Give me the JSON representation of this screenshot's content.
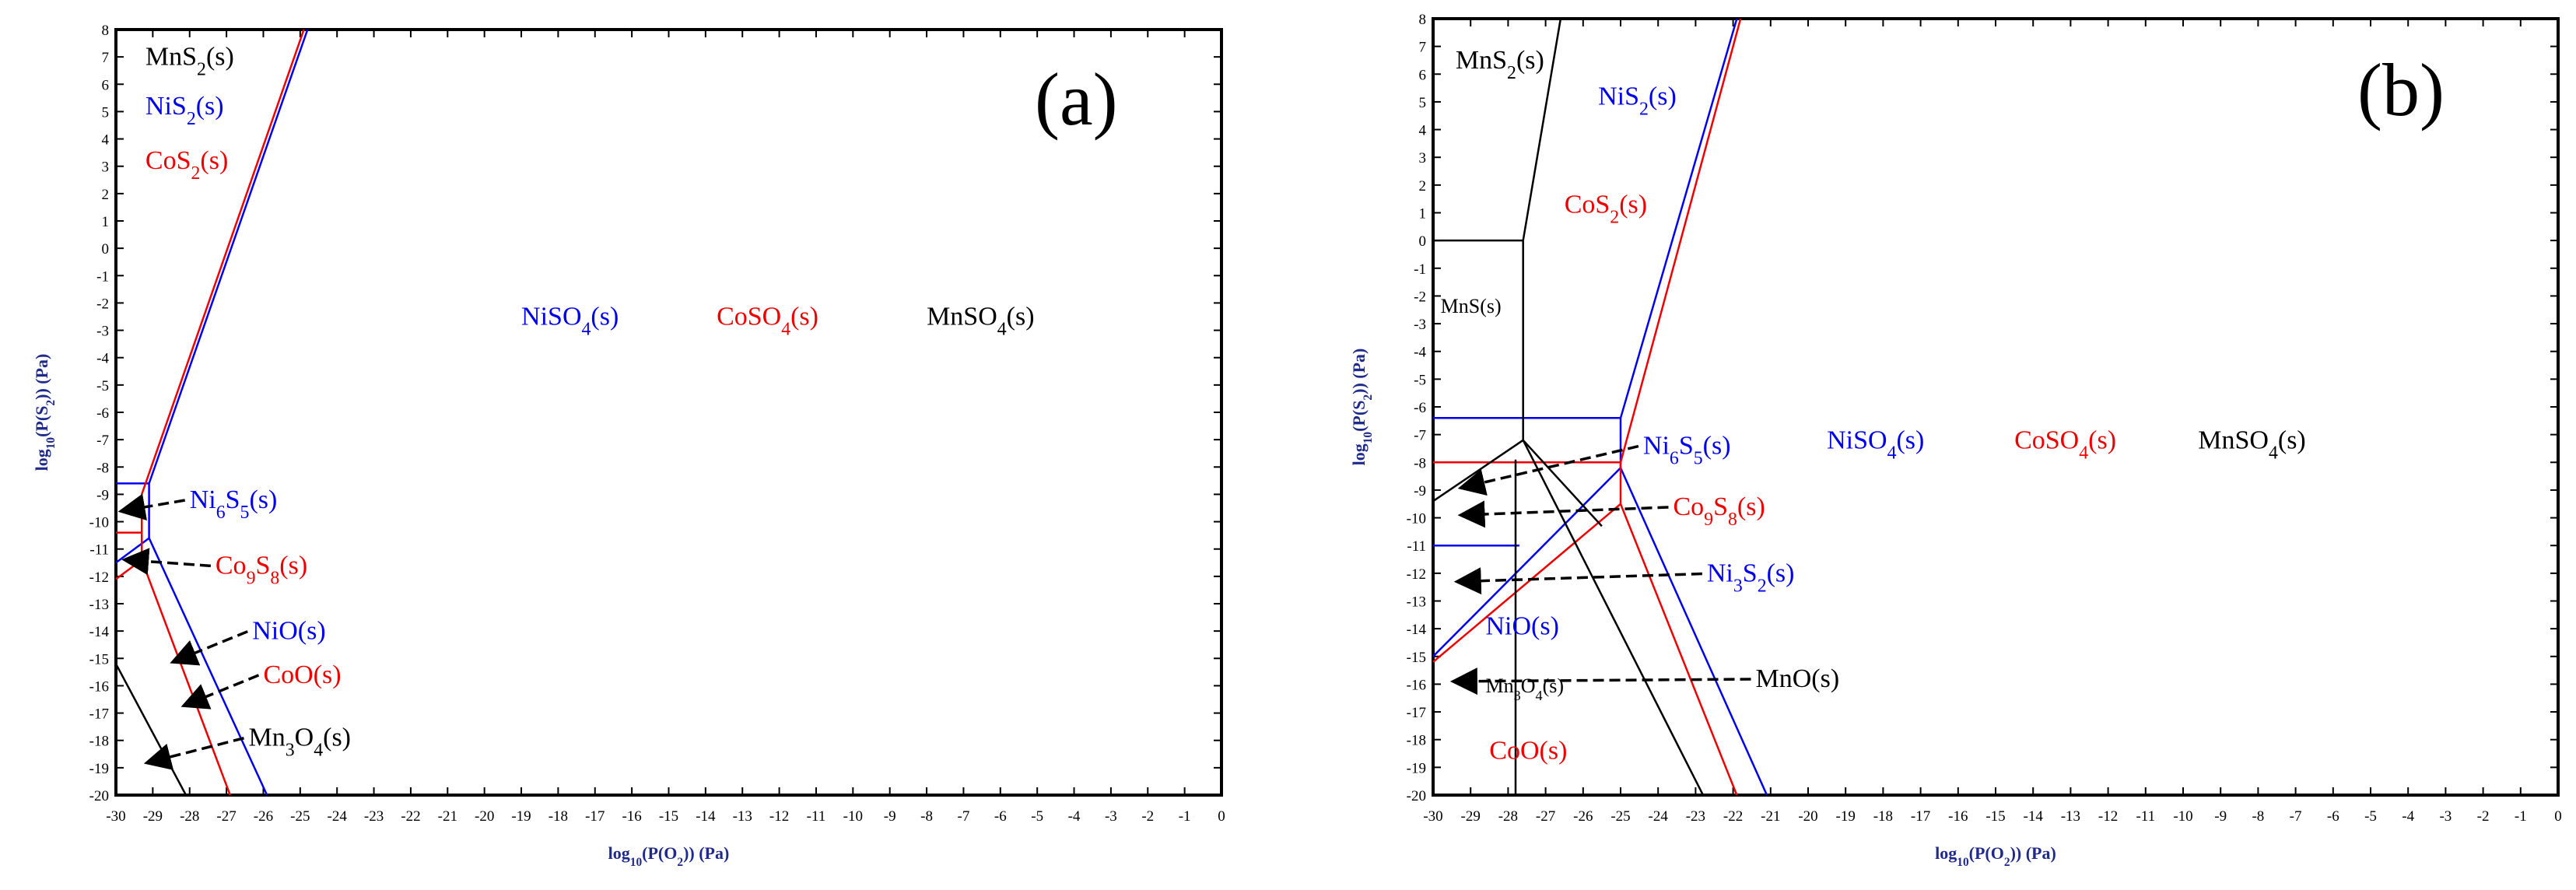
{
  "colors": {
    "Ni": "#0000ee",
    "Co": "#ee0000",
    "Mn": "#000000",
    "axis_label": "#1f2a8a"
  },
  "chart_data": [
    {
      "type": "line",
      "panel": "(a)",
      "xlabel": "log10(P(O2)) (Pa)",
      "ylabel": "log10(P(S2)) (Pa)",
      "xlim": [
        -30,
        0
      ],
      "ylim": [
        -20,
        8
      ],
      "x_ticks": [
        "-30",
        "-29",
        "-28",
        "-27",
        "-26",
        "-25",
        "-24",
        "-23",
        "-22",
        "-21",
        "-20",
        "-19",
        "-18",
        "-17",
        "-16",
        "-15",
        "-14",
        "-13",
        "-12",
        "-11",
        "-10",
        "-9",
        "-8",
        "-7",
        "-6",
        "-5",
        "-4",
        "-3",
        "-2",
        "-1",
        "0"
      ],
      "y_ticks": [
        "-20",
        "-19",
        "-18",
        "-17",
        "-16",
        "-15",
        "-14",
        "-13",
        "-12",
        "-11",
        "-10",
        "-9",
        "-8",
        "-7",
        "-6",
        "-5",
        "-4",
        "-3",
        "-2",
        "-1",
        "0",
        "1",
        "2",
        "3",
        "4",
        "5",
        "6",
        "7",
        "8"
      ],
      "series": [
        {
          "name": "Ni boundaries",
          "element": "Ni",
          "lines": [
            [
              [
                -30,
                -8.6
              ],
              [
                -29.1,
                -8.6
              ]
            ],
            [
              [
                -29.1,
                -8.6
              ],
              [
                -24.8,
                8
              ]
            ],
            [
              [
                -29.1,
                -8.6
              ],
              [
                -29.1,
                -10.6
              ]
            ],
            [
              [
                -29.1,
                -10.6
              ],
              [
                -30,
                -11.5
              ]
            ],
            [
              [
                -29.1,
                -10.6
              ],
              [
                -25.9,
                -20
              ]
            ]
          ]
        },
        {
          "name": "Co boundaries",
          "element": "Co",
          "lines": [
            [
              [
                -30,
                -10.4
              ],
              [
                -29.3,
                -10.4
              ]
            ],
            [
              [
                -29.3,
                -9
              ],
              [
                -24.9,
                8
              ]
            ],
            [
              [
                -29.3,
                -9
              ],
              [
                -29.3,
                -11.4
              ]
            ],
            [
              [
                -29.3,
                -11.4
              ],
              [
                -30,
                -12.1
              ]
            ],
            [
              [
                -29.3,
                -11.4
              ],
              [
                -26.9,
                -20
              ]
            ]
          ]
        },
        {
          "name": "Mn boundaries",
          "element": "Mn",
          "lines": [
            [
              [
                -30,
                -15.2
              ],
              [
                -28.1,
                -20
              ]
            ]
          ]
        }
      ],
      "annotations": [
        {
          "label": "MnS2(s)",
          "element": "Mn",
          "at": [
            -29.2,
            6.7
          ]
        },
        {
          "label": "NiS2(s)",
          "element": "Ni",
          "at": [
            -29.2,
            4.9
          ]
        },
        {
          "label": "CoS2(s)",
          "element": "Co",
          "at": [
            -29.2,
            2.9
          ]
        },
        {
          "label": "NiSO4(s)",
          "element": "Ni",
          "at": [
            -19,
            -2.8
          ]
        },
        {
          "label": "CoSO4(s)",
          "element": "Co",
          "at": [
            -13.7,
            -2.8
          ]
        },
        {
          "label": "MnSO4(s)",
          "element": "Mn",
          "at": [
            -8,
            -2.8
          ]
        },
        {
          "label": "Ni6S5(s)",
          "element": "Ni",
          "at": [
            -28,
            -9.5
          ],
          "arrow_to": [
            -29.8,
            -9.6
          ]
        },
        {
          "label": "Co9S8(s)",
          "element": "Co",
          "at": [
            -27.3,
            -11.9
          ],
          "arrow_to": [
            -29.7,
            -11.4
          ]
        },
        {
          "label": "NiO(s)",
          "element": "Ni",
          "at": [
            -26.3,
            -14.3
          ],
          "arrow_to": [
            -28.4,
            -15.1
          ]
        },
        {
          "label": "CoO(s)",
          "element": "Co",
          "at": [
            -26,
            -15.9
          ],
          "arrow_to": [
            -28.1,
            -16.7
          ]
        },
        {
          "label": "Mn3O4(s)",
          "element": "Mn",
          "at": [
            -26.4,
            -18.2
          ],
          "arrow_to": [
            -29.1,
            -18.8
          ]
        }
      ]
    },
    {
      "type": "line",
      "panel": "(b)",
      "xlabel": "log10(P(O2)) (Pa)",
      "ylabel": "log10(P(S2)) (Pa)",
      "xlim": [
        -30,
        0
      ],
      "ylim": [
        -20,
        8
      ],
      "x_ticks": [
        "-30",
        "-29",
        "-28",
        "-27",
        "-26",
        "-25",
        "-24",
        "-23",
        "-22",
        "-21",
        "-20",
        "-19",
        "-18",
        "-17",
        "-16",
        "-15",
        "-14",
        "-13",
        "-12",
        "-11",
        "-10",
        "-9",
        "-8",
        "-7",
        "-6",
        "-5",
        "-4",
        "-3",
        "-2",
        "-1",
        "0"
      ],
      "y_ticks": [
        "-20",
        "-19",
        "-18",
        "-17",
        "-16",
        "-15",
        "-14",
        "-13",
        "-12",
        "-11",
        "-10",
        "-9",
        "-8",
        "-7",
        "-6",
        "-5",
        "-4",
        "-3",
        "-2",
        "-1",
        "0",
        "1",
        "2",
        "3",
        "4",
        "5",
        "6",
        "7",
        "8"
      ],
      "series": [
        {
          "name": "Ni boundaries",
          "element": "Ni",
          "lines": [
            [
              [
                -30,
                -6.4
              ],
              [
                -25,
                -6.4
              ]
            ],
            [
              [
                -25,
                -6.4
              ],
              [
                -21.9,
                8
              ]
            ],
            [
              [
                -25,
                -6.4
              ],
              [
                -25,
                -8.2
              ]
            ],
            [
              [
                -30,
                -11
              ],
              [
                -27.7,
                -11
              ]
            ],
            [
              [
                -25,
                -8.2
              ],
              [
                -30,
                -15
              ]
            ],
            [
              [
                -25,
                -8.2
              ],
              [
                -21.1,
                -20
              ]
            ]
          ]
        },
        {
          "name": "Co boundaries",
          "element": "Co",
          "lines": [
            [
              [
                -30,
                -8
              ],
              [
                -25,
                -8
              ]
            ],
            [
              [
                -25,
                -8
              ],
              [
                -21.8,
                8
              ]
            ],
            [
              [
                -25,
                -8
              ],
              [
                -25,
                -9.5
              ]
            ],
            [
              [
                -25,
                -9.5
              ],
              [
                -30,
                -15.2
              ]
            ],
            [
              [
                -25,
                -9.5
              ],
              [
                -21.9,
                -20
              ]
            ]
          ]
        },
        {
          "name": "Mn boundaries",
          "element": "Mn",
          "lines": [
            [
              [
                -30,
                0
              ],
              [
                -27.6,
                0
              ]
            ],
            [
              [
                -27.6,
                0
              ],
              [
                -26.6,
                8
              ]
            ],
            [
              [
                -27.6,
                0
              ],
              [
                -27.6,
                -7.2
              ]
            ],
            [
              [
                -27.6,
                -7.2
              ],
              [
                -30,
                -9.4
              ]
            ],
            [
              [
                -27.6,
                -7.2
              ],
              [
                -25.5,
                -10.3
              ]
            ],
            [
              [
                -27.6,
                -7.2
              ],
              [
                -22.8,
                -20
              ]
            ],
            [
              [
                -27.8,
                -7.9
              ],
              [
                -27.8,
                -20
              ]
            ]
          ]
        }
      ],
      "annotations": [
        {
          "label": "MnS2(s)",
          "element": "Mn",
          "at": [
            -29.4,
            6.2
          ]
        },
        {
          "label": "NiS2(s)",
          "element": "Ni",
          "at": [
            -25.6,
            4.9
          ]
        },
        {
          "label": "CoS2(s)",
          "element": "Co",
          "at": [
            -26.5,
            1
          ]
        },
        {
          "label": "MnS(s)",
          "element": "Mn",
          "at": [
            -29.8,
            -2.6
          ]
        },
        {
          "label": "NiSO4(s)",
          "element": "Ni",
          "at": [
            -19.5,
            -7.5
          ]
        },
        {
          "label": "CoSO4(s)",
          "element": "Co",
          "at": [
            -14.5,
            -7.5
          ]
        },
        {
          "label": "MnSO4(s)",
          "element": "Mn",
          "at": [
            -9.6,
            -7.5
          ]
        },
        {
          "label": "Ni6S5(s)",
          "element": "Ni",
          "at": [
            -24.4,
            -7.7
          ],
          "arrow_to": [
            -29.2,
            -8.9
          ]
        },
        {
          "label": "Co9S8(s)",
          "element": "Co",
          "at": [
            -23.6,
            -9.9
          ],
          "arrow_to": [
            -29.2,
            -9.9
          ]
        },
        {
          "label": "Ni3S2(s)",
          "element": "Ni",
          "at": [
            -22.7,
            -12.3
          ],
          "arrow_to": [
            -29.3,
            -12.3
          ]
        },
        {
          "label": "NiO(s)",
          "element": "Ni",
          "at": [
            -28.6,
            -14.2
          ]
        },
        {
          "label": "Mn3O4(s)",
          "element": "Mn",
          "at": [
            -28.6,
            -16.3
          ]
        },
        {
          "label": "MnO(s)",
          "element": "Mn",
          "at": [
            -21.4,
            -16.1
          ],
          "arrow_to": [
            -29.4,
            -15.9
          ]
        },
        {
          "label": "CoO(s)",
          "element": "Co",
          "at": [
            -28.5,
            -18.7
          ]
        }
      ]
    }
  ]
}
